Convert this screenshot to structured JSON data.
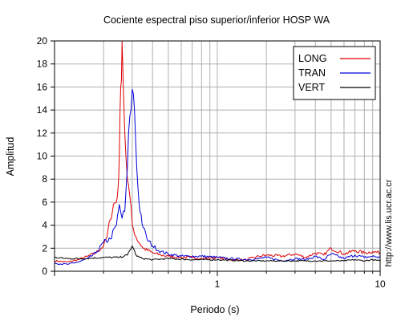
{
  "chart_data": {
    "type": "line",
    "title": "Cociente espectral piso superior/inferior  HOSP WA",
    "xlabel": "Periodo (s)",
    "ylabel": "Amplitud",
    "xscale": "log",
    "xlim": [
      0.1,
      10
    ],
    "ylim": [
      0,
      20
    ],
    "xtick_labels": [
      "1",
      "10"
    ],
    "ytick_labels": [
      "0",
      "2",
      "4",
      "6",
      "8",
      "10",
      "12",
      "14",
      "16",
      "18",
      "20"
    ],
    "grid": true,
    "legend_position": "top-right",
    "watermark": "http://www.lis.ucr.ac.cr",
    "colors": {
      "LONG": "#e00000",
      "TRAN": "#0000dd",
      "VERT": "#000000"
    },
    "series": [
      {
        "name": "LONG",
        "color": "#e00000",
        "x": [
          0.1,
          0.12,
          0.14,
          0.16,
          0.18,
          0.2,
          0.21,
          0.22,
          0.23,
          0.24,
          0.245,
          0.25,
          0.255,
          0.26,
          0.27,
          0.28,
          0.29,
          0.3,
          0.32,
          0.35,
          0.4,
          0.45,
          0.5,
          0.6,
          0.7,
          0.8,
          1.0,
          1.2,
          1.5,
          1.8,
          2.0,
          2.5,
          3.0,
          3.5,
          4.0,
          4.5,
          5.0,
          6.0,
          7.0,
          8.0,
          9.0,
          10.0
        ],
        "y": [
          0.9,
          0.8,
          1.0,
          1.3,
          1.6,
          2.2,
          3.0,
          4.5,
          5.8,
          6.0,
          7.0,
          10.0,
          16.0,
          20.0,
          12.0,
          8.0,
          6.5,
          4.0,
          2.8,
          2.0,
          1.6,
          1.4,
          1.3,
          1.2,
          1.2,
          1.1,
          1.2,
          1.0,
          1.0,
          1.3,
          1.4,
          1.3,
          1.5,
          1.2,
          1.6,
          1.4,
          2.0,
          1.5,
          1.8,
          1.6,
          1.7,
          1.6
        ]
      },
      {
        "name": "TRAN",
        "color": "#0000dd",
        "x": [
          0.1,
          0.12,
          0.14,
          0.16,
          0.18,
          0.2,
          0.22,
          0.24,
          0.25,
          0.26,
          0.27,
          0.28,
          0.29,
          0.3,
          0.31,
          0.32,
          0.33,
          0.35,
          0.37,
          0.4,
          0.45,
          0.5,
          0.6,
          0.7,
          0.8,
          1.0,
          1.2,
          1.5,
          1.8,
          2.0,
          2.5,
          3.0,
          3.5,
          4.0,
          4.5,
          5.0,
          6.0,
          7.0,
          8.0,
          9.0,
          10.0
        ],
        "y": [
          0.7,
          0.6,
          0.8,
          1.1,
          1.6,
          2.5,
          2.8,
          4.0,
          5.8,
          4.6,
          5.2,
          9.0,
          13.5,
          15.8,
          14.0,
          9.0,
          6.0,
          3.8,
          2.8,
          2.2,
          1.7,
          1.5,
          1.3,
          1.3,
          1.3,
          1.2,
          1.1,
          1.0,
          1.1,
          1.2,
          0.9,
          1.1,
          1.0,
          1.3,
          1.0,
          1.5,
          1.1,
          1.4,
          1.2,
          1.3,
          1.2
        ]
      },
      {
        "name": "VERT",
        "color": "#000000",
        "x": [
          0.1,
          0.12,
          0.15,
          0.2,
          0.25,
          0.28,
          0.3,
          0.32,
          0.35,
          0.4,
          0.5,
          0.7,
          1.0,
          1.5,
          2.0,
          3.0,
          4.0,
          5.0,
          6.0,
          7.0,
          8.0,
          9.0,
          10.0
        ],
        "y": [
          1.2,
          1.1,
          1.1,
          1.2,
          1.2,
          1.4,
          2.2,
          1.3,
          1.1,
          1.0,
          1.1,
          1.0,
          1.0,
          0.9,
          0.9,
          0.9,
          0.9,
          0.9,
          0.9,
          1.0,
          0.9,
          1.0,
          0.9
        ]
      }
    ]
  }
}
